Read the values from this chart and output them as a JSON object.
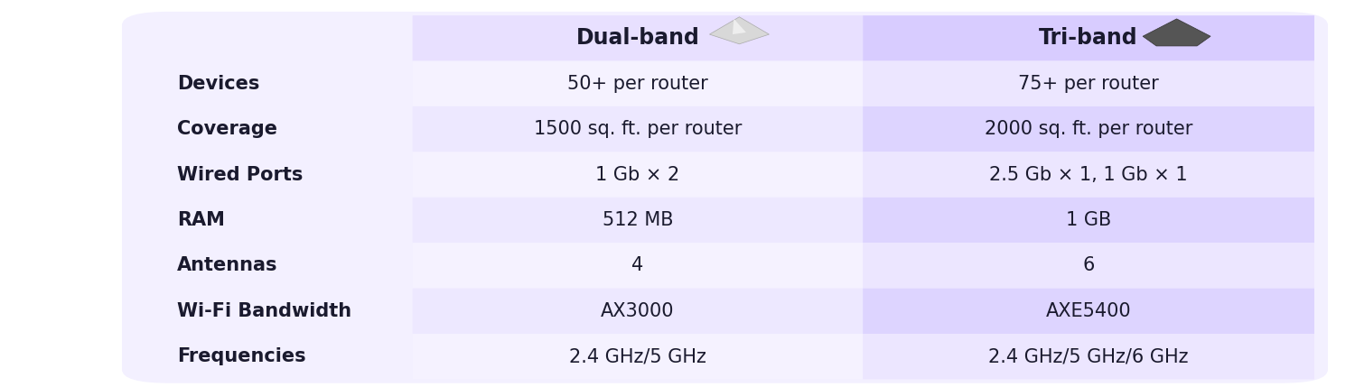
{
  "bg_color": "#f3f0ff",
  "outer_bg": "#ffffff",
  "header_col1_color": "#e8e0ff",
  "header_col2_color": "#d8ccff",
  "row_odd_col1": "#ede8ff",
  "row_odd_col2": "#ddd4ff",
  "row_even_col1": "#f5f2ff",
  "row_even_col2": "#ece6ff",
  "col1_header": "Dual-band",
  "col2_header": "Tri-band",
  "rows": [
    {
      "label": "Devices",
      "col1": "50+ per router",
      "col2": "75+ per router"
    },
    {
      "label": "Coverage",
      "col1": "1500 sq. ft. per router",
      "col2": "2000 sq. ft. per router"
    },
    {
      "label": "Wired Ports",
      "col1": "1 Gb × 2",
      "col2": "2.5 Gb × 1, 1 Gb × 1"
    },
    {
      "label": "RAM",
      "col1": "512 MB",
      "col2": "1 GB"
    },
    {
      "label": "Antennas",
      "col1": "4",
      "col2": "6"
    },
    {
      "label": "Wi-Fi Bandwidth",
      "col1": "AX3000",
      "col2": "AXE5400"
    },
    {
      "label": "Frequencies",
      "col1": "2.4 GHz/5 GHz",
      "col2": "2.4 GHz/5 GHz/6 GHz"
    }
  ],
  "text_color": "#1a1a2e",
  "header_fontsize": 17,
  "cell_fontsize": 15,
  "label_fontsize": 15
}
